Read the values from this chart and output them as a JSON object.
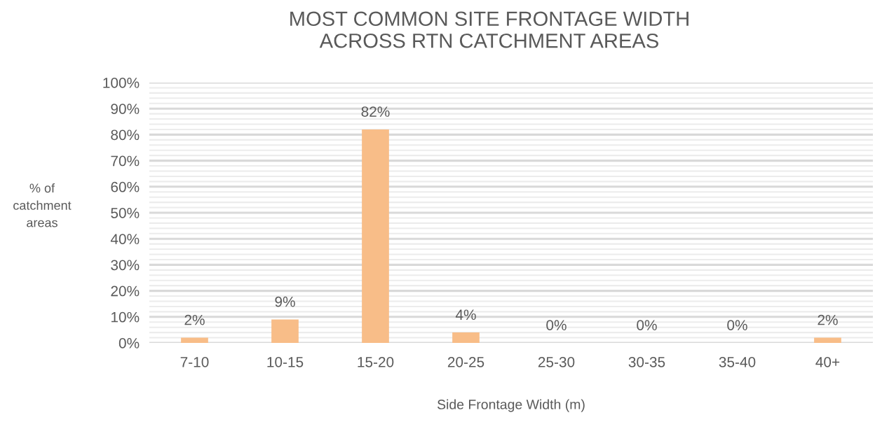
{
  "chart_data": {
    "type": "bar",
    "title": "MOST COMMON SITE FRONTAGE WIDTH\nACROSS RTN CATCHMENT AREAS",
    "xlabel": "Side Frontage Width (m)",
    "ylabel": "% of\ncatchment\nareas",
    "categories": [
      "7-10",
      "10-15",
      "15-20",
      "20-25",
      "25-30",
      "30-35",
      "35-40",
      "40+"
    ],
    "values": [
      2,
      9,
      82,
      4,
      0,
      0,
      0,
      2
    ],
    "color": "#f8bd88",
    "value_labels": [
      "2%",
      "9%",
      "82%",
      "4%",
      "0%",
      "0%",
      "0%",
      "2%"
    ],
    "ylim": [
      0,
      100
    ],
    "yticks": [
      {
        "value": 0,
        "label": "0%"
      },
      {
        "value": 10,
        "label": "10%"
      },
      {
        "value": 20,
        "label": "20%"
      },
      {
        "value": 30,
        "label": "30%"
      },
      {
        "value": 40,
        "label": "40%"
      },
      {
        "value": 50,
        "label": "50%"
      },
      {
        "value": 60,
        "label": "60%"
      },
      {
        "value": 70,
        "label": "70%"
      },
      {
        "value": 80,
        "label": "80%"
      },
      {
        "value": 90,
        "label": "90%"
      },
      {
        "value": 100,
        "label": "100%"
      }
    ],
    "grid": "y",
    "legend": false
  }
}
